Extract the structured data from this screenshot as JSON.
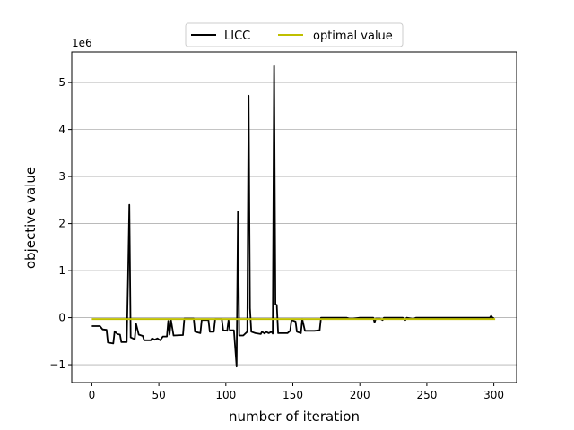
{
  "chart_data": {
    "type": "line",
    "title": "",
    "xlabel": "number of iteration",
    "ylabel": "objective value",
    "y_scale_label": "1e6",
    "xlim": [
      -15,
      317
    ],
    "ylim": [
      -1.38,
      5.65
    ],
    "x_ticks": [
      0,
      50,
      100,
      150,
      200,
      250,
      300
    ],
    "y_ticks": [
      -1,
      0,
      1,
      2,
      3,
      4,
      5
    ],
    "x_tick_labels": [
      "0",
      "50",
      "100",
      "150",
      "200",
      "250",
      "300"
    ],
    "y_tick_labels": [
      "−1",
      "0",
      "1",
      "2",
      "3",
      "4",
      "5"
    ],
    "grid": "y-major",
    "legend_position": "top-center",
    "series": [
      {
        "name": "LICC",
        "color": "#000000",
        "points": [
          [
            0,
            -0.18
          ],
          [
            6,
            -0.18
          ],
          [
            8,
            -0.25
          ],
          [
            11,
            -0.26
          ],
          [
            12,
            -0.53
          ],
          [
            16,
            -0.55
          ],
          [
            17,
            -0.29
          ],
          [
            19,
            -0.35
          ],
          [
            21,
            -0.36
          ],
          [
            22,
            -0.52
          ],
          [
            26,
            -0.52
          ],
          [
            27,
            0.8
          ],
          [
            28,
            2.4
          ],
          [
            29,
            -0.42
          ],
          [
            32,
            -0.46
          ],
          [
            33,
            -0.13
          ],
          [
            35,
            -0.36
          ],
          [
            38,
            -0.39
          ],
          [
            39,
            -0.48
          ],
          [
            44,
            -0.48
          ],
          [
            45,
            -0.44
          ],
          [
            47,
            -0.47
          ],
          [
            49,
            -0.44
          ],
          [
            51,
            -0.48
          ],
          [
            53,
            -0.4
          ],
          [
            56,
            -0.4
          ],
          [
            57,
            -0.07
          ],
          [
            58,
            -0.36
          ],
          [
            59,
            -0.05
          ],
          [
            61,
            -0.38
          ],
          [
            68,
            -0.37
          ],
          [
            69,
            -0.02
          ],
          [
            76,
            -0.02
          ],
          [
            77,
            -0.3
          ],
          [
            81,
            -0.33
          ],
          [
            82,
            -0.05
          ],
          [
            87,
            -0.05
          ],
          [
            88,
            -0.3
          ],
          [
            91,
            -0.3
          ],
          [
            92,
            -0.03
          ],
          [
            97,
            -0.03
          ],
          [
            98,
            -0.26
          ],
          [
            101,
            -0.28
          ],
          [
            102,
            -0.05
          ],
          [
            103,
            -0.27
          ],
          [
            106,
            -0.27
          ],
          [
            108,
            -1.04
          ],
          [
            109,
            2.26
          ],
          [
            110,
            -0.38
          ],
          [
            113,
            -0.38
          ],
          [
            116,
            -0.3
          ],
          [
            117,
            4.72
          ],
          [
            118,
            0.2
          ],
          [
            119,
            -0.3
          ],
          [
            122,
            -0.33
          ],
          [
            126,
            -0.35
          ],
          [
            127,
            -0.3
          ],
          [
            129,
            -0.34
          ],
          [
            130,
            -0.3
          ],
          [
            132,
            -0.33
          ],
          [
            134,
            -0.3
          ],
          [
            135,
            -0.34
          ],
          [
            136,
            5.35
          ],
          [
            137,
            0.28
          ],
          [
            138,
            0.27
          ],
          [
            139,
            -0.33
          ],
          [
            146,
            -0.33
          ],
          [
            148,
            -0.28
          ],
          [
            149,
            -0.05
          ],
          [
            152,
            -0.08
          ],
          [
            153,
            -0.3
          ],
          [
            156,
            -0.33
          ],
          [
            157,
            -0.03
          ],
          [
            159,
            -0.28
          ],
          [
            166,
            -0.28
          ],
          [
            170,
            -0.27
          ],
          [
            171,
            0.0
          ],
          [
            190,
            0.0
          ],
          [
            192,
            -0.02
          ],
          [
            195,
            -0.02
          ],
          [
            200,
            0.0
          ],
          [
            210,
            0.0
          ],
          [
            211,
            -0.1
          ],
          [
            212,
            -0.02
          ],
          [
            215,
            -0.02
          ],
          [
            217,
            -0.05
          ],
          [
            218,
            0.0
          ],
          [
            232,
            0.0
          ],
          [
            234,
            -0.05
          ],
          [
            235,
            0.0
          ],
          [
            240,
            -0.03
          ],
          [
            242,
            0.0
          ],
          [
            280,
            0.0
          ],
          [
            297,
            0.0
          ],
          [
            298,
            0.04
          ],
          [
            299,
            0.0
          ],
          [
            300,
            -0.01
          ]
        ]
      },
      {
        "name": "optimal value",
        "color": "#bfbf00",
        "points": [
          [
            0,
            -0.03
          ],
          [
            301,
            -0.03
          ]
        ]
      }
    ]
  }
}
